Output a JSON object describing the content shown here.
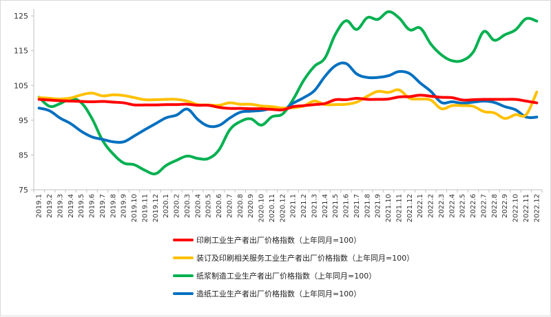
{
  "chart_data": {
    "type": "line",
    "title": "",
    "xlabel": "",
    "ylabel": "",
    "ylim": [
      75,
      127
    ],
    "yticks": [
      75,
      85,
      95,
      105,
      115,
      125
    ],
    "grid": false,
    "legend_position": "bottom",
    "categories": [
      "2019.1",
      "2019.2",
      "2019.3",
      "2019.4",
      "2019.5",
      "2019.6",
      "2019.7",
      "2019.8",
      "2019.9",
      "2019.10",
      "2019.11",
      "2019.12",
      "2020.1",
      "2020.2",
      "2020.3",
      "2020.4",
      "2020.5",
      "2020.6",
      "2020.7",
      "2020.8",
      "2020.9",
      "2020.10",
      "2020.11",
      "2020.12",
      "2021.1",
      "2021.2",
      "2021.3",
      "2021.4",
      "2021.5",
      "2021.6",
      "2021.7",
      "2021.8",
      "2021.9",
      "2021.10",
      "2021.11",
      "2021.12",
      "2022.1",
      "2022.2",
      "2022.3",
      "2022.4",
      "2022.5",
      "2022.6",
      "2022.7",
      "2022.8",
      "2022.9",
      "2022.10",
      "2022.11",
      "2022.12"
    ],
    "series": [
      {
        "name": "印刷工业生产者出厂价格指数（上年同月=100）",
        "color": "#ff0000",
        "values": [
          101.0,
          100.8,
          100.6,
          100.5,
          100.4,
          100.3,
          100.4,
          100.2,
          100.0,
          99.4,
          99.4,
          99.4,
          99.5,
          99.5,
          99.6,
          99.3,
          99.3,
          98.7,
          98.4,
          98.4,
          98.3,
          98.3,
          98.1,
          98.0,
          98.9,
          99.2,
          99.5,
          99.8,
          100.9,
          100.9,
          101.3,
          101.0,
          101.0,
          101.1,
          101.7,
          101.8,
          102.2,
          101.9,
          101.6,
          101.5,
          100.8,
          100.9,
          101.0,
          101.0,
          101.0,
          101.0,
          100.5,
          100.0
        ]
      },
      {
        "name": "装订及印刷相关服务工业生产者出厂价格指数（上年同月=100）",
        "color": "#ffc000",
        "values": [
          101.5,
          101.3,
          101.1,
          101.4,
          102.3,
          102.8,
          102.0,
          102.3,
          102.1,
          101.5,
          100.9,
          100.9,
          101.0,
          101.0,
          100.5,
          99.5,
          99.4,
          99.3,
          100.0,
          99.6,
          99.6,
          99.1,
          98.9,
          98.5,
          98.6,
          99.1,
          100.5,
          99.5,
          99.5,
          99.6,
          100.2,
          101.9,
          103.3,
          103.0,
          103.7,
          101.3,
          101.1,
          100.8,
          98.3,
          99.2,
          99.2,
          99.0,
          97.5,
          97.1,
          95.5,
          96.6,
          96.6,
          103.1
        ]
      },
      {
        "name": "纸浆制造工业生产者出厂价格指数（上年同月=100）",
        "color": "#00b050",
        "values": [
          101.6,
          99.0,
          99.8,
          101.2,
          100.0,
          95.5,
          89.2,
          85.3,
          82.7,
          82.2,
          80.6,
          79.6,
          82.0,
          83.5,
          84.7,
          84.0,
          84.0,
          86.5,
          92.2,
          94.6,
          95.4,
          93.6,
          96.0,
          96.8,
          101.0,
          106.5,
          110.5,
          112.9,
          119.8,
          123.6,
          121.1,
          124.5,
          124.0,
          126.2,
          124.4,
          121.0,
          121.5,
          116.9,
          113.8,
          112.1,
          112.2,
          114.6,
          120.5,
          118.0,
          119.6,
          121.0,
          124.2,
          123.5
        ]
      },
      {
        "name": "造纸工业生产者出厂价格指数（上年同月=100）",
        "color": "#0070c0",
        "values": [
          98.5,
          97.7,
          95.6,
          94.0,
          91.8,
          90.2,
          89.5,
          88.8,
          88.8,
          90.5,
          92.3,
          94.0,
          95.7,
          96.5,
          98.2,
          95.2,
          93.3,
          93.5,
          95.6,
          97.3,
          97.6,
          97.8,
          98.3,
          98.0,
          99.9,
          101.5,
          103.5,
          107.6,
          110.7,
          111.3,
          108.3,
          107.3,
          107.3,
          107.8,
          109.0,
          108.4,
          105.7,
          103.3,
          100.1,
          100.3,
          99.9,
          100.2,
          100.5,
          100.1,
          98.9,
          98.0,
          95.9,
          95.9
        ]
      }
    ]
  }
}
